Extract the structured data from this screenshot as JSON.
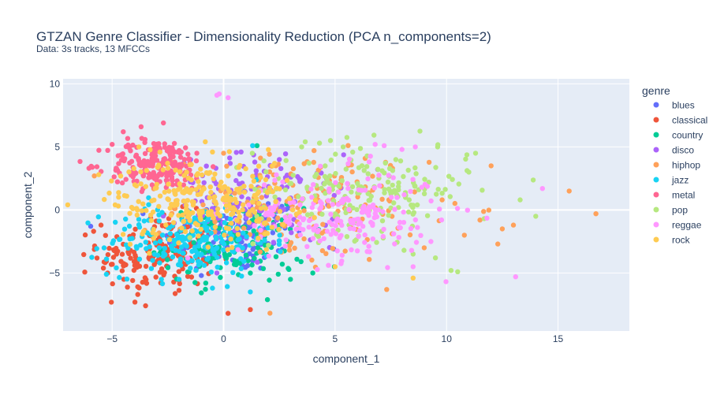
{
  "chart_data": {
    "type": "scatter",
    "title": "GTZAN Genre Classifier - Dimensionality Reduction (PCA n_components=2)",
    "subtitle": "Data: 3s tracks, 13 MFCCs",
    "xlabel": "component_1",
    "ylabel": "component_2",
    "xlim": [
      -7.2,
      18.2
    ],
    "ylim": [
      -9.6,
      10.4
    ],
    "x_ticks": [
      -5,
      0,
      5,
      10,
      15
    ],
    "y_ticks": [
      -5,
      0,
      5,
      10
    ],
    "grid": true,
    "legend_title": "genre",
    "legend_position": "right",
    "series": [
      {
        "name": "blues",
        "color": "#636efa",
        "center": [
          0.5,
          -2.0
        ],
        "spread": [
          1.6,
          1.5
        ],
        "count": 140,
        "points": [
          [
            -2.5,
            -4.5
          ],
          [
            2.0,
            0.5
          ],
          [
            -1.0,
            -5.2
          ]
        ]
      },
      {
        "name": "classical",
        "color": "#ef553b",
        "center": [
          -3.0,
          -3.6
        ],
        "spread": [
          1.3,
          1.6
        ],
        "count": 170,
        "points": [
          [
            -5.2,
            -5.0
          ],
          [
            -3.5,
            -7.6
          ],
          [
            0.2,
            -8.2
          ],
          [
            1.2,
            -7.9
          ],
          [
            -5.5,
            -1.2
          ],
          [
            -4.8,
            -3.5
          ],
          [
            -2.0,
            -5.6
          ]
        ]
      },
      {
        "name": "country",
        "color": "#00cc96",
        "center": [
          0.5,
          -2.8
        ],
        "spread": [
          1.6,
          1.5
        ],
        "count": 130,
        "points": [
          [
            3.0,
            -5.5
          ],
          [
            1.5,
            5.1
          ],
          [
            -0.8,
            -5.8
          ],
          [
            4.0,
            -5.0
          ]
        ]
      },
      {
        "name": "disco",
        "color": "#ab63fa",
        "center": [
          1.5,
          0.8
        ],
        "spread": [
          1.8,
          1.8
        ],
        "count": 130,
        "points": [
          [
            1.4,
            3.8
          ],
          [
            2.5,
            4.0
          ],
          [
            -0.3,
            -5.0
          ]
        ]
      },
      {
        "name": "hiphop",
        "color": "#ffa15a",
        "center": [
          3.5,
          0.3
        ],
        "spread": [
          2.8,
          2.2
        ],
        "count": 170,
        "points": [
          [
            16.7,
            -0.3
          ],
          [
            15.5,
            1.5
          ],
          [
            12.5,
            -1.5
          ],
          [
            12.3,
            -2.7
          ],
          [
            11.5,
            -0.8
          ],
          [
            13.0,
            -1.2
          ],
          [
            12.0,
            3.5
          ],
          [
            9.8,
            0.8
          ],
          [
            9.0,
            -3.0
          ],
          [
            10.8,
            -2.0
          ],
          [
            -5.8,
            2.7
          ],
          [
            0.0,
            4.5
          ]
        ]
      },
      {
        "name": "jazz",
        "color": "#19d3f3",
        "center": [
          -1.5,
          -2.4
        ],
        "spread": [
          1.8,
          1.4
        ],
        "count": 220,
        "points": [
          [
            -0.5,
            -6.2
          ],
          [
            1.2,
            -6.5
          ],
          [
            1.3,
            5.1
          ],
          [
            -2.0,
            -5.5
          ]
        ]
      },
      {
        "name": "metal",
        "color": "#ff6692",
        "center": [
          -3.0,
          3.6
        ],
        "spread": [
          1.1,
          1.0
        ],
        "count": 200,
        "points": [
          [
            -4.5,
            6.2
          ],
          [
            -2.7,
            6.9
          ],
          [
            -3.7,
            6.6
          ],
          [
            -5.0,
            5.2
          ],
          [
            -1.2,
            4.5
          ]
        ]
      },
      {
        "name": "pop",
        "color": "#b6e880",
        "center": [
          6.2,
          1.6
        ],
        "spread": [
          2.4,
          1.8
        ],
        "count": 200,
        "points": [
          [
            14.0,
            -0.5
          ],
          [
            13.3,
            0.8
          ],
          [
            11.3,
            4.5
          ],
          [
            10.5,
            -4.9
          ],
          [
            10.2,
            -4.8
          ],
          [
            9.6,
            5.0
          ],
          [
            9.2,
            2.2
          ],
          [
            11.0,
            3.0
          ],
          [
            4.3,
            5.3
          ],
          [
            3.5,
            5.0
          ],
          [
            8.5,
            -3.5
          ],
          [
            9.5,
            -3.8
          ]
        ]
      },
      {
        "name": "reggae",
        "color": "#ff97ff",
        "center": [
          5.2,
          -0.5
        ],
        "spread": [
          2.3,
          1.8
        ],
        "count": 200,
        "points": [
          [
            -0.3,
            9.1
          ],
          [
            0.2,
            8.9
          ],
          [
            -0.2,
            9.2
          ],
          [
            14.3,
            1.7
          ],
          [
            13.1,
            -5.3
          ],
          [
            8.6,
            5.0
          ],
          [
            6.8,
            5.2
          ],
          [
            7.2,
            5.1
          ],
          [
            8.0,
            4.8
          ],
          [
            8.5,
            -4.5
          ]
        ]
      },
      {
        "name": "rock",
        "color": "#fecb52",
        "center": [
          -1.0,
          0.8
        ],
        "spread": [
          2.0,
          1.6
        ],
        "count": 260,
        "points": [
          [
            -5.6,
            2.8
          ],
          [
            8.5,
            -5.4
          ],
          [
            -0.5,
            4.6
          ],
          [
            2.2,
            3.5
          ],
          [
            -3.8,
            5.0
          ],
          [
            5.0,
            -4.5
          ]
        ]
      }
    ]
  }
}
